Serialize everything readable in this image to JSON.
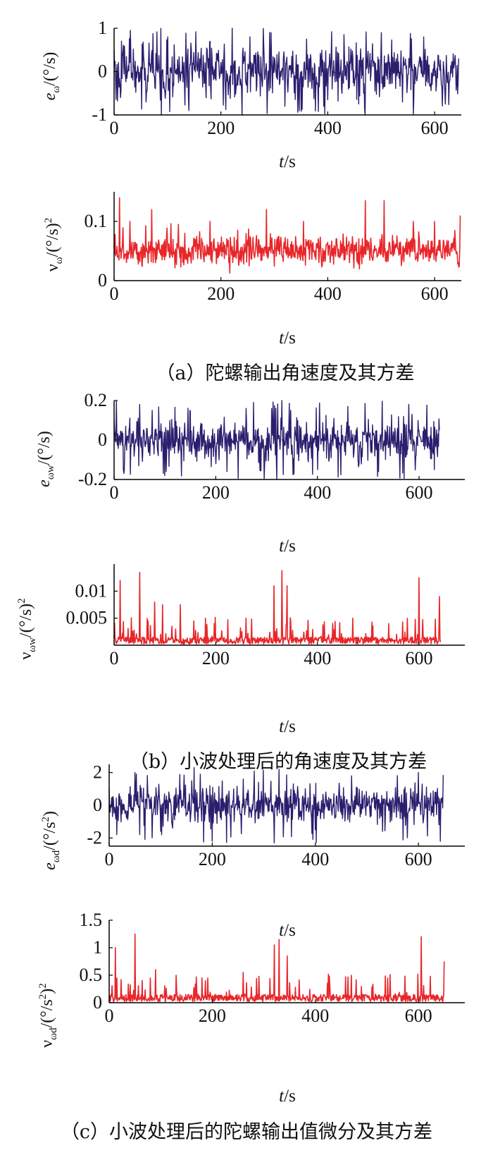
{
  "chart_data": [
    {
      "type": "line",
      "panel": "a-top",
      "ylabel": "e_ω/(°/s)",
      "xlabel": "t/s",
      "xlim": [
        0,
        650
      ],
      "ylim": [
        -1,
        1
      ],
      "xticks": [
        0,
        200,
        400,
        600
      ],
      "yticks": [
        "-1",
        "0",
        "1"
      ],
      "series": [
        {
          "color": "#2b1e6e",
          "noise": "dense",
          "amplitude": 0.55,
          "peak": 1.0,
          "x_end": 645,
          "values_summary": [
            {
              "x": 0,
              "y": 0.5
            },
            {
              "x": 12,
              "y": -0.6
            },
            {
              "x": 30,
              "y": 0.95
            },
            {
              "x": 60,
              "y": -0.7
            },
            {
              "x": 100,
              "y": 0.8
            },
            {
              "x": 140,
              "y": -0.9
            },
            {
              "x": 180,
              "y": 0.7
            },
            {
              "x": 240,
              "y": -1.0
            },
            {
              "x": 280,
              "y": 0.6
            },
            {
              "x": 320,
              "y": -0.8
            },
            {
              "x": 360,
              "y": 0.75
            },
            {
              "x": 400,
              "y": -0.65
            },
            {
              "x": 430,
              "y": 0.85
            },
            {
              "x": 470,
              "y": -1.0
            },
            {
              "x": 500,
              "y": 0.9
            },
            {
              "x": 540,
              "y": -0.7
            },
            {
              "x": 580,
              "y": 0.8
            },
            {
              "x": 620,
              "y": -0.75
            },
            {
              "x": 645,
              "y": 0.3
            }
          ]
        }
      ]
    },
    {
      "type": "line",
      "panel": "a-bottom",
      "ylabel": "ν_ω/(°/s)²",
      "xlabel": "t/s",
      "xlim": [
        0,
        650
      ],
      "ylim": [
        0,
        0.15
      ],
      "xticks": [
        0,
        200,
        400,
        600
      ],
      "yticks": [
        "0",
        "0.1"
      ],
      "series": [
        {
          "color": "#e8262a",
          "noise": "variance",
          "base": 0.05,
          "x_end": 648,
          "peaks": [
            {
              "x": 10,
              "y": 0.14
            },
            {
              "x": 30,
              "y": 0.1
            },
            {
              "x": 70,
              "y": 0.12
            },
            {
              "x": 120,
              "y": 0.095
            },
            {
              "x": 180,
              "y": 0.1
            },
            {
              "x": 285,
              "y": 0.12
            },
            {
              "x": 355,
              "y": 0.1
            },
            {
              "x": 470,
              "y": 0.135
            },
            {
              "x": 505,
              "y": 0.135
            },
            {
              "x": 560,
              "y": 0.1
            },
            {
              "x": 600,
              "y": 0.1
            },
            {
              "x": 648,
              "y": 0.11
            }
          ]
        }
      ]
    },
    {
      "type": "line",
      "panel": "b-top",
      "ylabel": "e_ωw/(°/s)",
      "xlabel": "t/s",
      "xlim": [
        0,
        690
      ],
      "ylim": [
        -0.2,
        0.2
      ],
      "xticks": [
        0,
        200,
        400,
        600
      ],
      "yticks": [
        "-0.2",
        "0",
        "0.2"
      ],
      "series": [
        {
          "color": "#2b1e6e",
          "noise": "dense",
          "amplitude": 0.09,
          "peak": 0.2,
          "x_end": 640,
          "values_summary": [
            {
              "x": 0,
              "y": 0.1
            },
            {
              "x": 20,
              "y": -0.15
            },
            {
              "x": 50,
              "y": 0.18
            },
            {
              "x": 100,
              "y": -0.18
            },
            {
              "x": 150,
              "y": 0.15
            },
            {
              "x": 200,
              "y": -0.12
            },
            {
              "x": 260,
              "y": 0.16
            },
            {
              "x": 320,
              "y": -0.2
            },
            {
              "x": 330,
              "y": 0.2
            },
            {
              "x": 400,
              "y": -0.15
            },
            {
              "x": 460,
              "y": 0.17
            },
            {
              "x": 520,
              "y": -0.16
            },
            {
              "x": 580,
              "y": 0.18
            },
            {
              "x": 630,
              "y": -0.15
            },
            {
              "x": 640,
              "y": 0.05
            }
          ]
        }
      ]
    },
    {
      "type": "line",
      "panel": "b-bottom",
      "ylabel": "ν_ωw/(°/s)²",
      "xlabel": "t/s",
      "xlim": [
        0,
        690
      ],
      "ylim": [
        0,
        0.015
      ],
      "xticks": [
        0,
        200,
        400,
        600
      ],
      "yticks": [
        "0.005",
        "0.01"
      ],
      "series": [
        {
          "color": "#e8262a",
          "noise": "spiky",
          "base": 0.001,
          "x_end": 642,
          "peaks": [
            {
              "x": 12,
              "y": 0.012
            },
            {
              "x": 50,
              "y": 0.0135
            },
            {
              "x": 80,
              "y": 0.008
            },
            {
              "x": 95,
              "y": 0.0075
            },
            {
              "x": 130,
              "y": 0.0075
            },
            {
              "x": 180,
              "y": 0.005
            },
            {
              "x": 260,
              "y": 0.005
            },
            {
              "x": 315,
              "y": 0.011
            },
            {
              "x": 330,
              "y": 0.0138
            },
            {
              "x": 340,
              "y": 0.011
            },
            {
              "x": 470,
              "y": 0.005
            },
            {
              "x": 540,
              "y": 0.004
            },
            {
              "x": 600,
              "y": 0.0125
            },
            {
              "x": 640,
              "y": 0.009
            }
          ]
        }
      ]
    },
    {
      "type": "line",
      "panel": "c-top",
      "ylabel": "e_ωd/(°/s²)",
      "xlabel": "t/s",
      "xlim": [
        0,
        690
      ],
      "ylim": [
        -2.5,
        2.5
      ],
      "xticks": [
        0,
        200,
        400,
        600
      ],
      "yticks": [
        "-2",
        "0",
        "2"
      ],
      "series": [
        {
          "color": "#2b1e6e",
          "noise": "dense",
          "amplitude": 1.0,
          "peak": 2.3,
          "x_end": 648,
          "values_summary": [
            {
              "x": 0,
              "y": 1.0
            },
            {
              "x": 15,
              "y": -1.8
            },
            {
              "x": 50,
              "y": 2.0
            },
            {
              "x": 100,
              "y": -1.6
            },
            {
              "x": 160,
              "y": 1.5
            },
            {
              "x": 200,
              "y": -2.2
            },
            {
              "x": 260,
              "y": 1.6
            },
            {
              "x": 320,
              "y": -2.3
            },
            {
              "x": 330,
              "y": 2.2
            },
            {
              "x": 400,
              "y": -1.5
            },
            {
              "x": 470,
              "y": 1.8
            },
            {
              "x": 530,
              "y": -1.6
            },
            {
              "x": 600,
              "y": 2.0
            },
            {
              "x": 640,
              "y": -1.2
            }
          ]
        }
      ]
    },
    {
      "type": "line",
      "panel": "c-bottom",
      "ylabel": "ν_ωd/(°/s²)²",
      "xlabel": "t/s",
      "xlim": [
        0,
        690
      ],
      "ylim": [
        0,
        1.5
      ],
      "xticks": [
        0,
        200,
        400,
        600
      ],
      "yticks": [
        "0",
        "0.5",
        "1",
        "1.5"
      ],
      "series": [
        {
          "color": "#e8262a",
          "noise": "spiky",
          "base": 0.1,
          "x_end": 650,
          "peaks": [
            {
              "x": 12,
              "y": 1.0
            },
            {
              "x": 50,
              "y": 1.25
            },
            {
              "x": 90,
              "y": 0.6
            },
            {
              "x": 130,
              "y": 0.5
            },
            {
              "x": 180,
              "y": 0.45
            },
            {
              "x": 260,
              "y": 0.55
            },
            {
              "x": 320,
              "y": 1.05
            },
            {
              "x": 330,
              "y": 1.15
            },
            {
              "x": 345,
              "y": 0.85
            },
            {
              "x": 470,
              "y": 0.5
            },
            {
              "x": 540,
              "y": 0.45
            },
            {
              "x": 605,
              "y": 1.2
            },
            {
              "x": 650,
              "y": 0.75
            }
          ]
        }
      ]
    }
  ],
  "captions": {
    "a": "（a）陀螺输出角速度及其方差",
    "b": "（b）小波处理后的角速度及其方差",
    "c": "（c）小波处理后的陀螺输出值微分及其方差"
  },
  "xlabel_text": "t/s"
}
